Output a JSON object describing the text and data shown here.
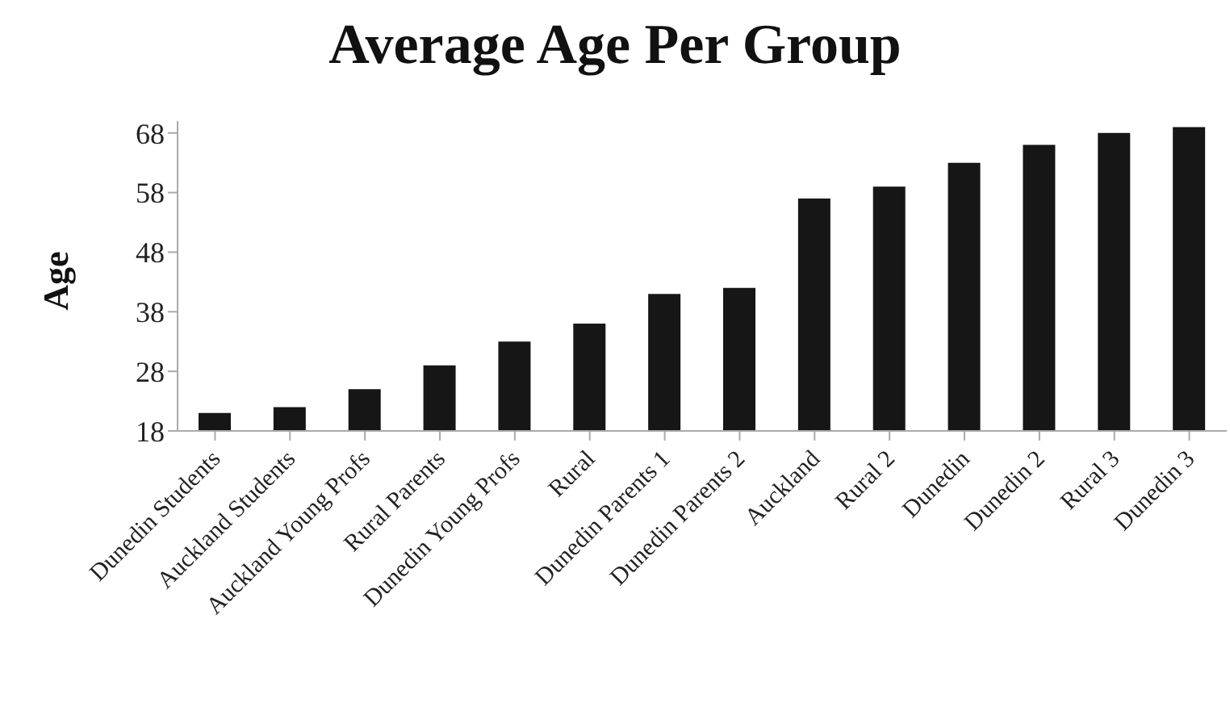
{
  "chart_data": {
    "type": "bar",
    "title": "Average Age Per Group",
    "ylabel": "Age",
    "categories": [
      "Dunedin Students",
      "Auckland Students",
      "Auckland Young Profs",
      "Rural Parents",
      "Dunedin Young Profs",
      "Rural",
      "Dunedin Parents 1",
      "Dunedin Parents 2",
      "Auckland",
      "Rural 2",
      "Dunedin",
      "Dunedin 2",
      "Rural 3",
      "Dunedin 3"
    ],
    "values": [
      21,
      22,
      25,
      29,
      33,
      36,
      41,
      42,
      57,
      59,
      63,
      66,
      68,
      69
    ],
    "color": "#161616",
    "ylim": [
      18,
      70
    ],
    "yticks": [
      18,
      28,
      38,
      48,
      58,
      68
    ],
    "grid": false,
    "legend": false
  }
}
